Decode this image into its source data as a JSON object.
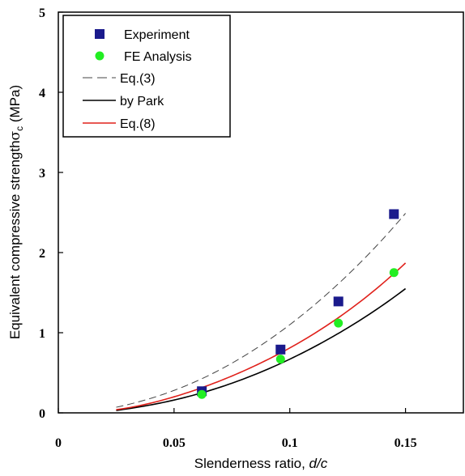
{
  "chart_data": {
    "type": "scatter",
    "xlabel_main": "Slenderness ratio, ",
    "xlabel_italic": "d/c",
    "ylabel_main": "Equivalent compressive strength",
    "ylabel_sigma": "σ",
    "ylabel_sub": "c",
    "ylabel_unit": " (MPa)",
    "xlim": [
      0,
      0.175
    ],
    "ylim": [
      0,
      5
    ],
    "xticks": [
      {
        "value": 0,
        "label": "0"
      },
      {
        "value": 0.05,
        "label": "0.05"
      },
      {
        "value": 0.1,
        "label": "0.1"
      },
      {
        "value": 0.15,
        "label": "0.15"
      }
    ],
    "yticks": [
      {
        "value": 0,
        "label": "0"
      },
      {
        "value": 1,
        "label": "1"
      },
      {
        "value": 2,
        "label": "2"
      },
      {
        "value": 3,
        "label": "3"
      },
      {
        "value": 4,
        "label": "4"
      },
      {
        "value": 5,
        "label": "5"
      }
    ],
    "grid": false,
    "legend_position": "top-left",
    "series": [
      {
        "name": "Experiment",
        "kind": "points",
        "marker": "square",
        "color": "#1a1a8c",
        "x": [
          0.062,
          0.096,
          0.121,
          0.145
        ],
        "y": [
          0.27,
          0.79,
          1.39,
          2.48
        ]
      },
      {
        "name": "FE Analysis",
        "kind": "points",
        "marker": "circle",
        "color": "#22ee22",
        "x": [
          0.062,
          0.096,
          0.121,
          0.145
        ],
        "y": [
          0.23,
          0.67,
          1.12,
          1.75
        ]
      },
      {
        "name": "Eq.(3)",
        "kind": "line",
        "style": "dashed",
        "color": "#444444",
        "x": [
          0.025,
          0.05,
          0.075,
          0.1,
          0.125,
          0.15
        ],
        "y": [
          0.07,
          0.28,
          0.62,
          1.1,
          1.72,
          2.49
        ]
      },
      {
        "name": "by Park",
        "kind": "line",
        "style": "solid",
        "color": "#000000",
        "x": [
          0.025,
          0.05,
          0.075,
          0.1,
          0.125,
          0.15
        ],
        "y": [
          0.03,
          0.16,
          0.37,
          0.67,
          1.06,
          1.55
        ]
      },
      {
        "name": "Eq.(8)",
        "kind": "line",
        "style": "solid",
        "color": "#e0201a",
        "x": [
          0.025,
          0.05,
          0.075,
          0.1,
          0.125,
          0.15
        ],
        "y": [
          0.04,
          0.2,
          0.46,
          0.81,
          1.27,
          1.87
        ]
      }
    ]
  }
}
